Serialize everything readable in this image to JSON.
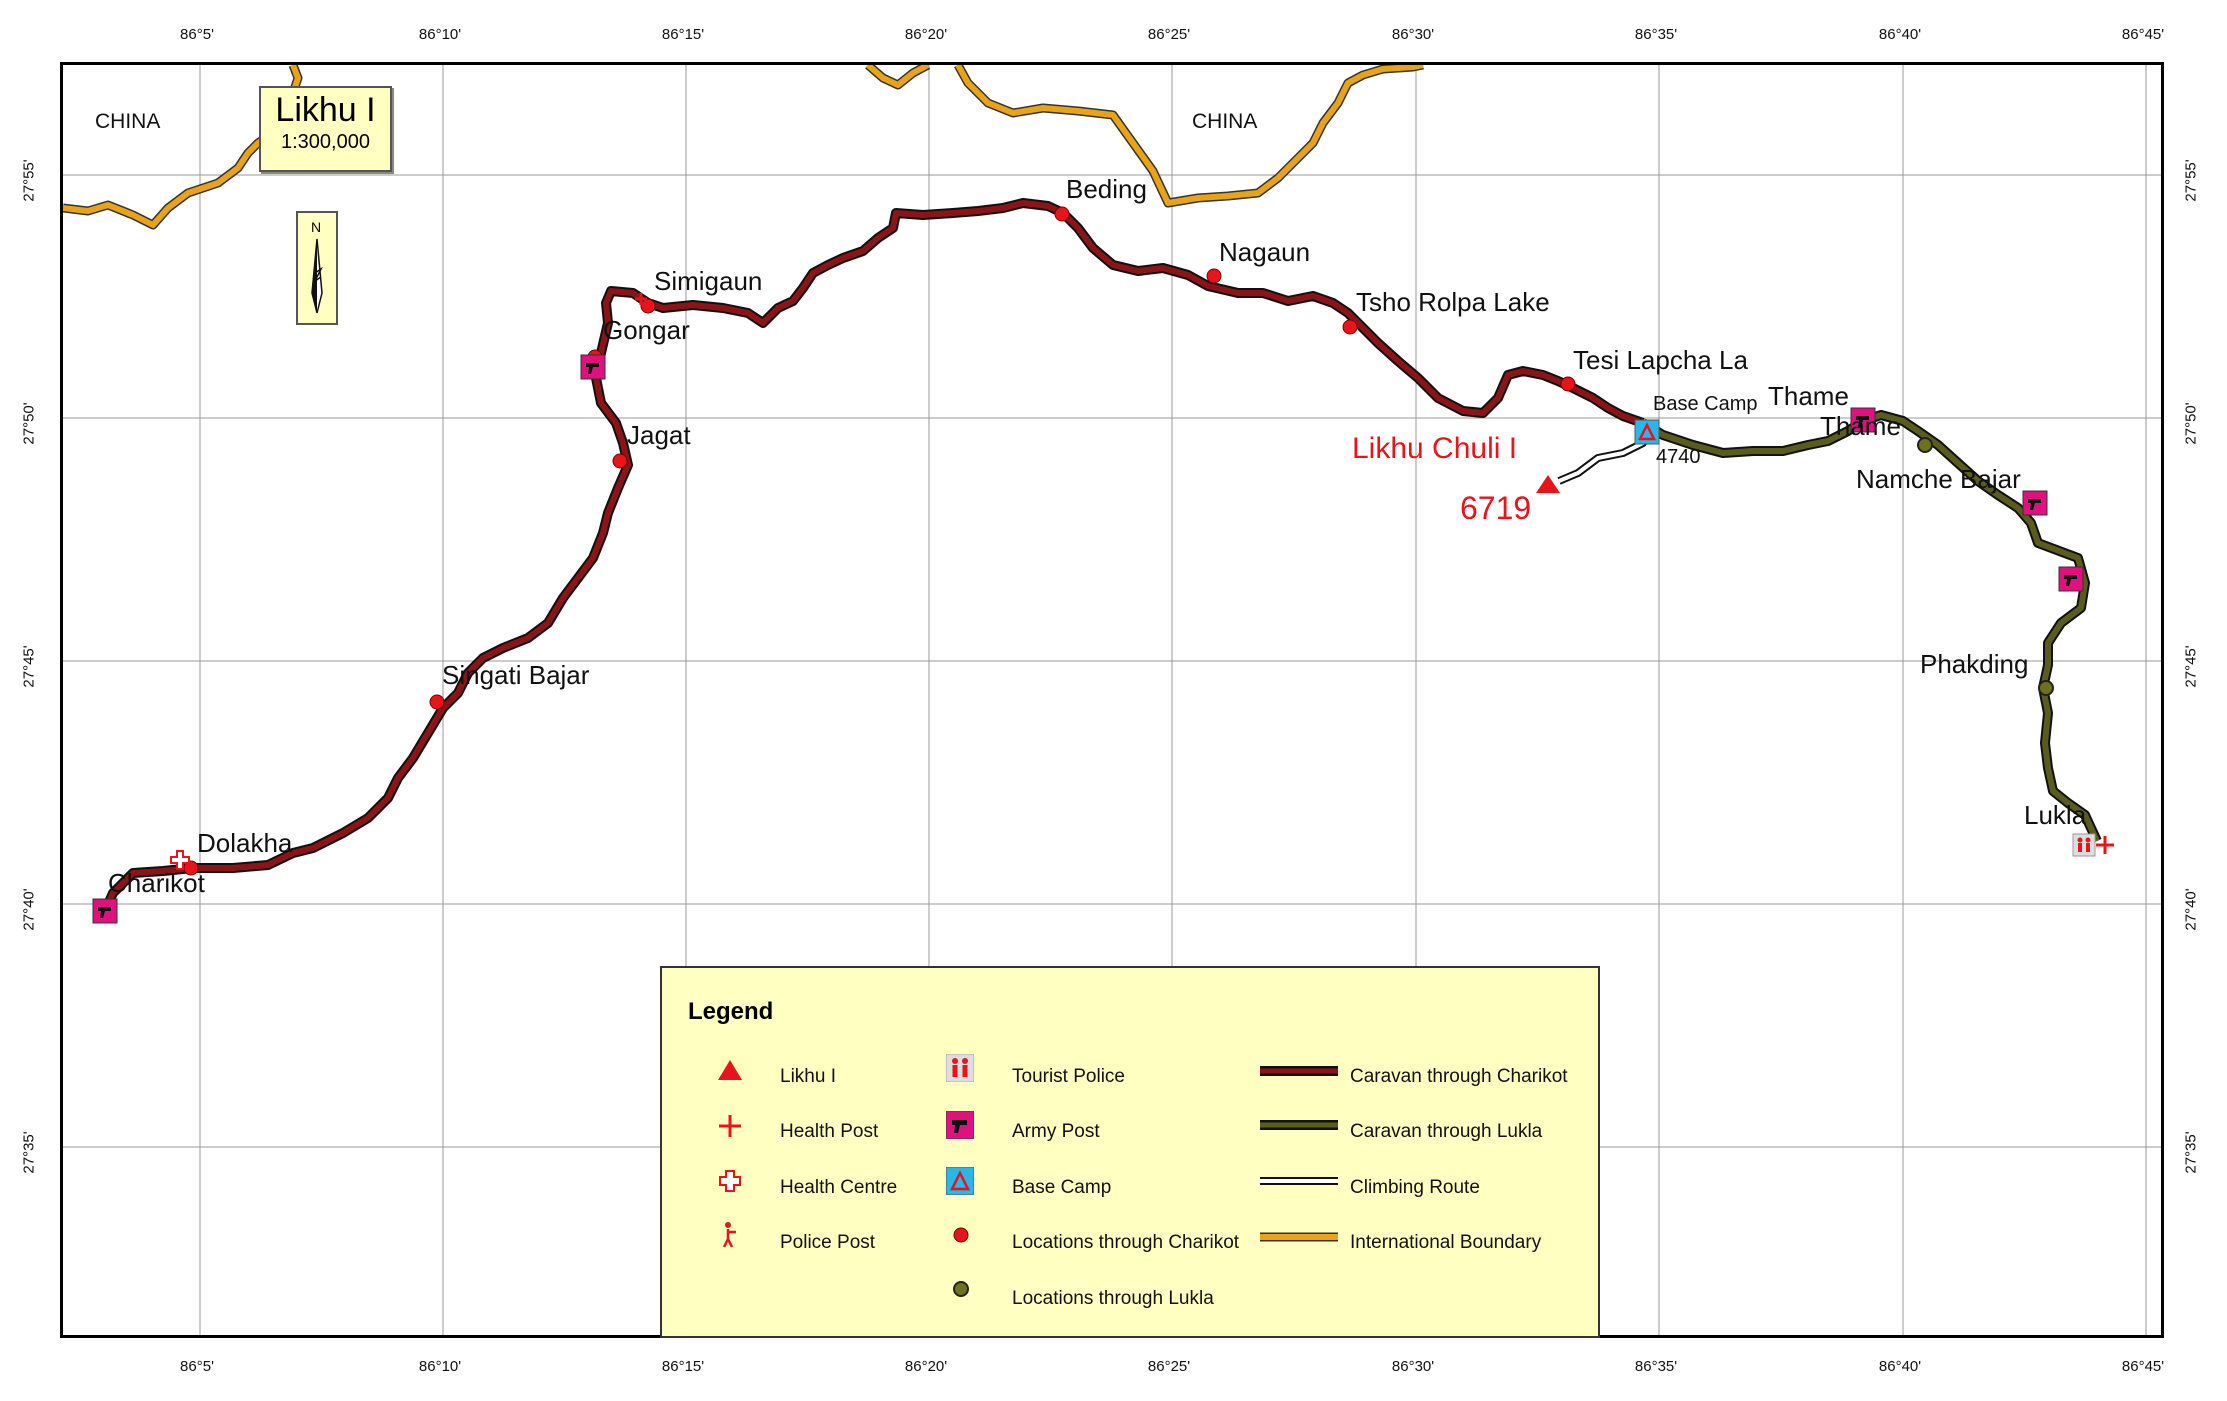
{
  "map": {
    "title": "Likhu I",
    "scale": "1:300,000",
    "north_label": "N",
    "country_labels": [
      "CHINA",
      "CHINA"
    ],
    "lon_ticks": [
      "86°5'",
      "86°10'",
      "86°15'",
      "86°20'",
      "86°25'",
      "86°30'",
      "86°35'",
      "86°40'",
      "86°45'"
    ],
    "lat_ticks": [
      "27°55'",
      "27°50'",
      "27°45'",
      "27°40'",
      "27°35'"
    ],
    "places": {
      "beding": "Beding",
      "nagaun": "Nagaun",
      "tsho_rolpa": "Tsho Rolpa Lake",
      "simigaun": "Simigaun",
      "gongar": "Gongar",
      "jagat": "Jagat",
      "singati": "Singati Bajar",
      "dolakha": "Dolakha",
      "charikot": "Charikot",
      "tesi_lapcha": "Tesi Lapcha La",
      "base_camp": "Base Camp",
      "thame1": "Thame",
      "thame2": "Thame",
      "namche": "Namche Bajar",
      "phakding": "Phakding",
      "lukla": "Lukla"
    },
    "peak": {
      "name": "Likhu Chuli I",
      "elevation": "6719"
    },
    "base_camp_elevation": "4740",
    "colors": {
      "charikot_route": "#8b1418",
      "lukla_route": "#4f5218",
      "boundary": "#e8a317",
      "peak": "#e8141b",
      "army_post": "#e0117f",
      "base_camp": "#29b6e8",
      "legend_bg": "#ffffc2"
    }
  },
  "legend": {
    "title": "Legend",
    "items": {
      "likhu": "Likhu I",
      "health_post": "Health Post",
      "health_centre": "Health Centre",
      "police_post": "Police Post",
      "tourist_police": "Tourist Police",
      "army_post": "Army Post",
      "base_camp": "Base Camp",
      "loc_charikot": "Locations through Charikot",
      "loc_lukla": "Locations through Lukla",
      "caravan_charikot": "Caravan through Charikot",
      "caravan_lukla": "Caravan through Lukla",
      "climbing_route": "Climbing Route",
      "intl_boundary": "International Boundary"
    },
    "icons": [
      "triangle-icon",
      "plus-icon",
      "outline-cross-icon",
      "police-figure-icon",
      "tourist-police-icon",
      "army-post-icon",
      "base-camp-icon",
      "red-dot-icon",
      "olive-dot-icon"
    ]
  }
}
